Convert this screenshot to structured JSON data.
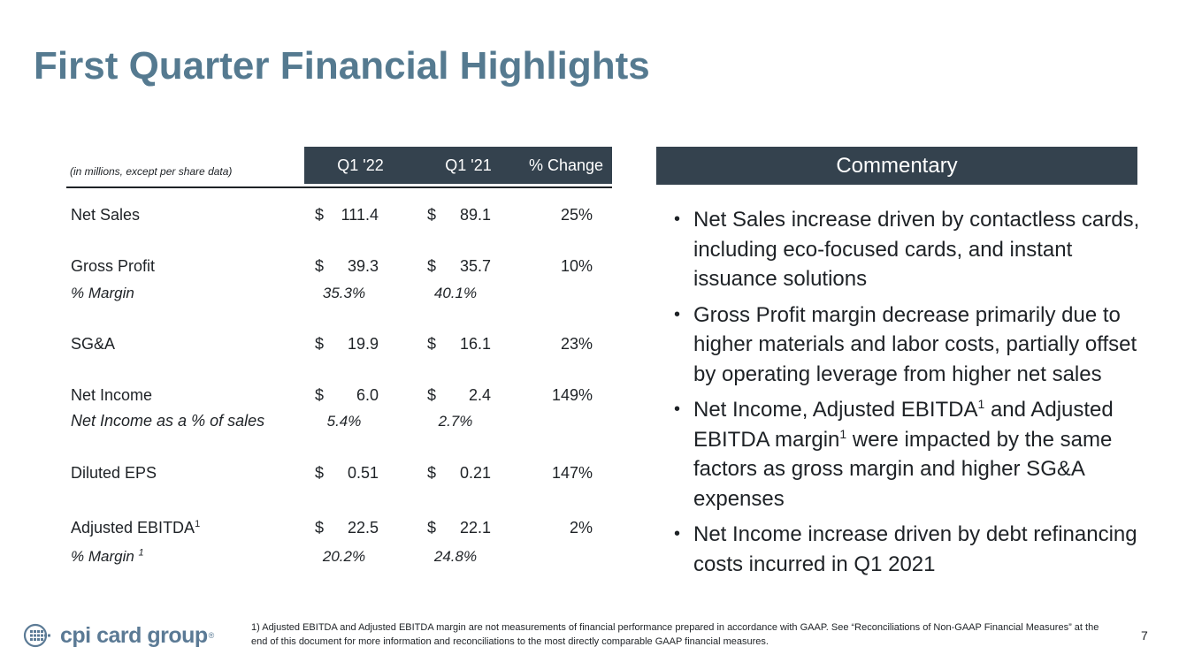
{
  "title": "First Quarter Financial Highlights",
  "table": {
    "note": "(in millions, except per share data)",
    "headers": {
      "q122": "Q1 '22",
      "q121": "Q1 '21",
      "change": "% Change"
    },
    "currency": "$",
    "rows": {
      "net_sales": {
        "label": "Net Sales",
        "q122": "111.4",
        "q121": "89.1",
        "change": "25%"
      },
      "gross_profit": {
        "label": "Gross Profit",
        "q122": "39.3",
        "q121": "35.7",
        "change": "10%",
        "margin_label": "% Margin",
        "margin_q122": "35.3%",
        "margin_q121": "40.1%"
      },
      "sga": {
        "label": "SG&A",
        "q122": "19.9",
        "q121": "16.1",
        "change": "23%"
      },
      "net_income": {
        "label": "Net Income",
        "q122": "6.0",
        "q121": "2.4",
        "change": "149%",
        "margin_label": "Net Income as a % of sales",
        "margin_q122": "5.4%",
        "margin_q121": "2.7%"
      },
      "diluted_eps": {
        "label": "Diluted EPS",
        "q122": "0.51",
        "q121": "0.21",
        "change": "147%"
      },
      "adj_ebitda": {
        "label": "Adjusted EBITDA",
        "footnote_mark": "1",
        "q122": "22.5",
        "q121": "22.1",
        "change": "2%",
        "margin_label": "% Margin",
        "margin_footnote_mark": "1",
        "margin_q122": "20.2%",
        "margin_q121": "24.8%"
      }
    }
  },
  "commentary": {
    "heading": "Commentary",
    "bullet_glyph": "•",
    "b1": "Net Sales increase driven by contactless cards, including eco-focused cards, and instant issuance solutions",
    "b2": "Gross Profit margin decrease primarily due to higher materials and labor costs, partially offset by operating leverage from higher net sales",
    "b3_part1": "Net Income, Adjusted EBITDA",
    "b3_sup1": "1",
    "b3_part2": " and Adjusted EBITDA margin",
    "b3_sup2": "1",
    "b3_part3": " were impacted by the same factors as gross margin and higher SG&A expenses",
    "b4": "Net Income increase driven by debt refinancing costs incurred in Q1 2021"
  },
  "footer": {
    "logo_text": "cpi card group",
    "logo_reg": "®",
    "footnote": "1) Adjusted EBITDA and Adjusted EBITDA margin are not measurements of financial performance prepared in accordance with GAAP. See “Reconciliations of Non-GAAP Financial Measures” at the end of this document for more information and reconciliations to the most directly comparable GAAP financial measures.",
    "page_number": "7"
  },
  "colors": {
    "title": "#557a90",
    "header_bg": "#34424e",
    "logo": "#5b7a95"
  }
}
